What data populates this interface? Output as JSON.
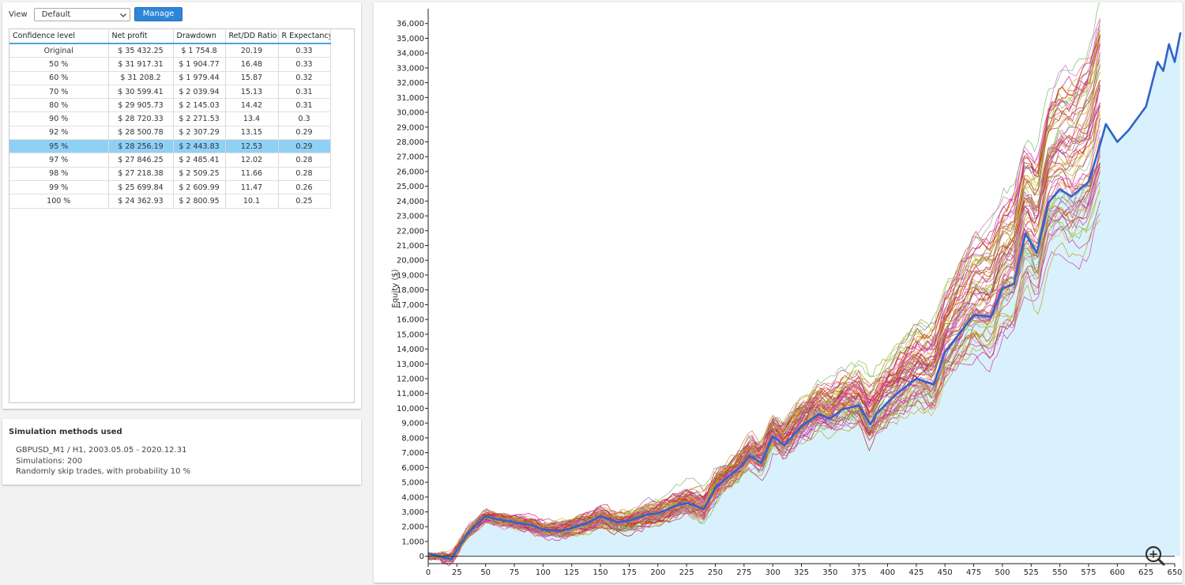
{
  "toolbar": {
    "view_label": "View",
    "view_value": "Default",
    "manage_label": "Manage"
  },
  "table": {
    "headers": [
      "Confidence level",
      "Net profit",
      "Drawdown",
      "Ret/DD Ratio",
      "R Expectancy"
    ],
    "rows": [
      [
        "Original",
        "$ 35 432.25",
        "$ 1 754.8",
        "20.19",
        "0.33"
      ],
      [
        "50 %",
        "$ 31 917.31",
        "$ 1 904.77",
        "16.48",
        "0.33"
      ],
      [
        "60 %",
        "$ 31 208.2",
        "$ 1 979.44",
        "15.87",
        "0.32"
      ],
      [
        "70 %",
        "$ 30 599.41",
        "$ 2 039.94",
        "15.13",
        "0.31"
      ],
      [
        "80 %",
        "$ 29 905.73",
        "$ 2 145.03",
        "14.42",
        "0.31"
      ],
      [
        "90 %",
        "$ 28 720.33",
        "$ 2 271.53",
        "13.4",
        "0.3"
      ],
      [
        "92 %",
        "$ 28 500.78",
        "$ 2 307.29",
        "13.15",
        "0.29"
      ],
      [
        "95 %",
        "$ 28 256.19",
        "$ 2 443.83",
        "12.53",
        "0.29"
      ],
      [
        "97 %",
        "$ 27 846.25",
        "$ 2 485.41",
        "12.02",
        "0.28"
      ],
      [
        "98 %",
        "$ 27 218.38",
        "$ 2 509.25",
        "11.66",
        "0.28"
      ],
      [
        "99 %",
        "$ 25 699.84",
        "$ 2 609.99",
        "11.47",
        "0.26"
      ],
      [
        "100 %",
        "$ 24 362.93",
        "$ 2 800.95",
        "10.1",
        "0.25"
      ]
    ],
    "selected_row": "95 %"
  },
  "simulation": {
    "title": "Simulation methods used",
    "lines": [
      "GBPUSD_M1 / H1, 2003.05.05 - 2020.12.31",
      "Simulations: 200",
      "Randomly skip trades, with probability 10 %"
    ]
  },
  "chart_data": {
    "type": "line",
    "ylabel": "Equity ($)",
    "xlabel": "",
    "xlim": [
      0,
      650
    ],
    "ylim": [
      -500,
      37000
    ],
    "y_ticks": [
      "0",
      "1,000",
      "2,000",
      "3,000",
      "4,000",
      "5,000",
      "6,000",
      "7,000",
      "8,000",
      "9,000",
      "10,000",
      "11,000",
      "12,000",
      "13,000",
      "14,000",
      "15,000",
      "16,000",
      "17,000",
      "18,000",
      "19,000",
      "20,000",
      "21,000",
      "22,000",
      "23,000",
      "24,000",
      "25,000",
      "26,000",
      "27,000",
      "28,000",
      "29,000",
      "30,000",
      "31,000",
      "32,000",
      "33,000",
      "34,000",
      "35,000",
      "36,000"
    ],
    "x_ticks": [
      "0",
      "25",
      "50",
      "75",
      "100",
      "125",
      "150",
      "175",
      "200",
      "225",
      "250",
      "275",
      "300",
      "325",
      "350",
      "375",
      "400",
      "425",
      "450",
      "475",
      "500",
      "525",
      "550",
      "575",
      "600",
      "625",
      "650"
    ],
    "original_series": {
      "x": [
        0,
        10,
        20,
        25,
        35,
        50,
        60,
        75,
        90,
        100,
        115,
        125,
        140,
        150,
        165,
        175,
        190,
        200,
        215,
        225,
        240,
        250,
        260,
        270,
        280,
        290,
        300,
        310,
        325,
        340,
        350,
        360,
        375,
        385,
        390,
        400,
        410,
        425,
        440,
        450,
        460,
        475,
        490,
        500,
        510,
        520,
        530,
        540,
        550,
        560,
        575,
        585,
        590,
        600,
        610,
        625,
        635,
        640,
        645,
        650,
        655
      ],
      "y": [
        200,
        0,
        -200,
        400,
        1600,
        2700,
        2500,
        2300,
        2100,
        1800,
        1700,
        1900,
        2300,
        2700,
        2300,
        2400,
        2800,
        2900,
        3400,
        3600,
        3200,
        4600,
        5300,
        5900,
        6800,
        6300,
        8100,
        7500,
        8800,
        9600,
        9300,
        9900,
        10200,
        8900,
        9600,
        10400,
        11100,
        12000,
        11600,
        13800,
        14800,
        16300,
        16200,
        18100,
        18400,
        21800,
        20500,
        23900,
        24800,
        24300,
        25300,
        27800,
        29200,
        28000,
        28800,
        30400,
        33400,
        32800,
        34600,
        33400,
        35400
      ],
      "color": "#2f63c9"
    },
    "simulation_count": 200,
    "simulation_end_x": 585,
    "simulation_end_range": [
      24000,
      37000
    ],
    "fill_color": "#d9f1fc",
    "simulation_colors": [
      "#cc2288",
      "#d13aa0",
      "#b8338a",
      "#c0a020",
      "#9fae22",
      "#d8b530",
      "#c04a14",
      "#b8220f",
      "#e060d0",
      "#70c060",
      "#e07a20",
      "#a05cbf"
    ]
  }
}
